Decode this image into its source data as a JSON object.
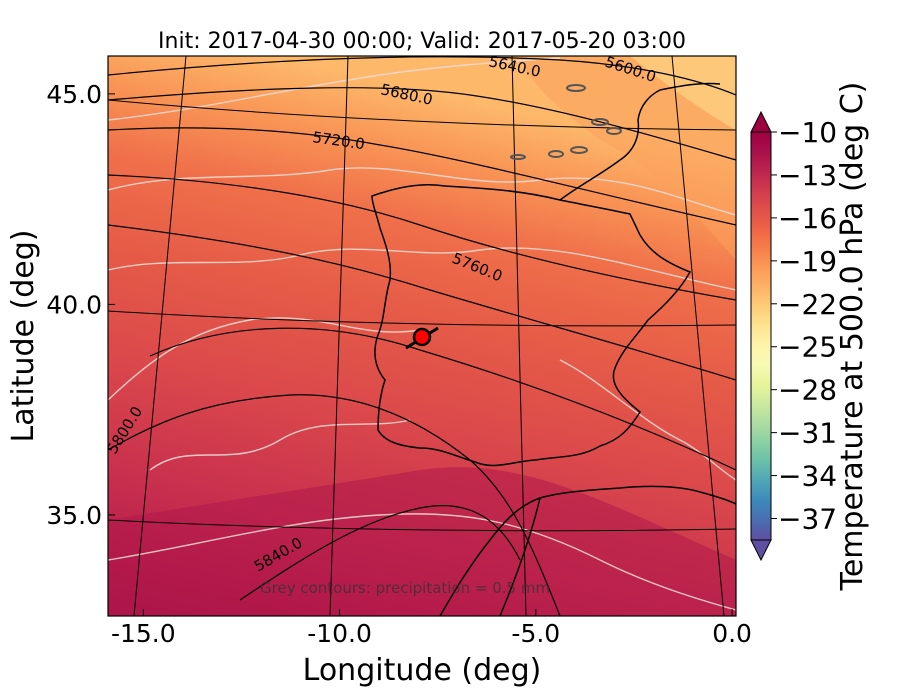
{
  "title": "Init: 2017-04-30 00:00; Valid: 2017-05-20 03:00",
  "x_axis": {
    "label": "Longitude (deg)",
    "ticks": [
      {
        "value": -15.0,
        "label": "-15.0"
      },
      {
        "value": -10.0,
        "label": "-10.0"
      },
      {
        "value": -5.0,
        "label": "-5.0"
      },
      {
        "value": 0.0,
        "label": "0.0"
      }
    ]
  },
  "y_axis": {
    "label": "Latitude (deg)",
    "ticks": [
      {
        "value": 35.0,
        "label": "35.0"
      },
      {
        "value": 40.0,
        "label": "40.0"
      },
      {
        "value": 45.0,
        "label": "45.0"
      }
    ]
  },
  "colorbar": {
    "label": "Temperature at 500.0 hPa (deg C)",
    "ticks": [
      "−10",
      "−13",
      "−16",
      "−19",
      "−22",
      "−25",
      "−28",
      "−31",
      "−34",
      "−37"
    ],
    "range": [
      -38,
      -10
    ],
    "colors": [
      "#5e4fa2",
      "#4a6db0",
      "#3c89bb",
      "#4ea4b6",
      "#68bfa8",
      "#89d0a4",
      "#acdca2",
      "#cbe99f",
      "#e7f49b",
      "#f7fab3",
      "#fff4ab",
      "#fee491",
      "#fecd78",
      "#fdb365",
      "#fc9a57",
      "#f67e4b",
      "#ee6445",
      "#e0504a",
      "#d03b4e",
      "#bc2450",
      "#a8104a",
      "#9e0142"
    ]
  },
  "contour_labels": [
    {
      "text": "5640.0"
    },
    {
      "text": "5600.0"
    },
    {
      "text": "5680.0"
    },
    {
      "text": "5720.0"
    },
    {
      "text": "5760.0"
    },
    {
      "text": "5800.0"
    },
    {
      "text": "5840.0"
    }
  ],
  "note": "Grey contours: precipitation = 0.5 mm",
  "marker": {
    "name": "location-marker",
    "color": "#ff0000"
  }
}
